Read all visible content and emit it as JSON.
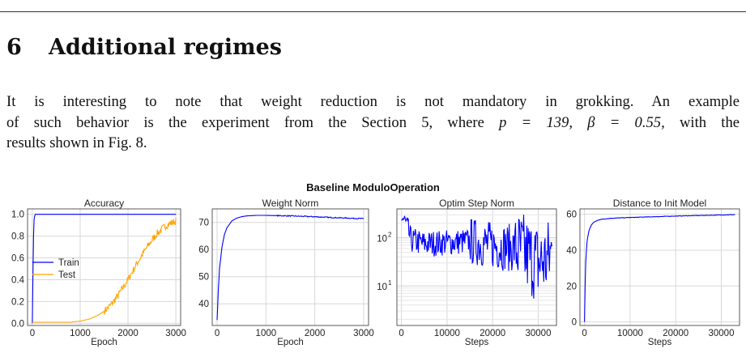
{
  "section": {
    "number": "6",
    "title": "Additional regimes"
  },
  "paragraph": {
    "line1": "It is interesting to note that weight reduction is not mandatory in grokking. An example",
    "line2_pre": "of such behavior is the experiment from the Section 5, where",
    "line2_math": "p = 139, β = 0.55,",
    "line2_post": "with the",
    "line3": "results shown in Fig. 8."
  },
  "figure": {
    "suptitle": "Baseline ModuloOperation"
  },
  "chart_data": [
    {
      "type": "line",
      "title": "Accuracy",
      "xlabel": "Epoch",
      "ylabel": "",
      "xlim": [
        -100,
        3100
      ],
      "ylim": [
        -0.02,
        1.05
      ],
      "xticks": [
        0,
        1000,
        2000,
        3000
      ],
      "yticks": [
        0.0,
        0.2,
        0.4,
        0.6,
        0.8,
        1.0
      ],
      "ytick_labels": [
        "0.0",
        "0.2",
        "0.4",
        "0.6",
        "0.8",
        "1.0"
      ],
      "grid": true,
      "legend": "center-left",
      "series": [
        {
          "name": "Train",
          "color": "#0000ff",
          "x": [
            0,
            10,
            20,
            30,
            40,
            60,
            100,
            500,
            1000,
            2000,
            3000
          ],
          "y": [
            0.0,
            0.3,
            0.7,
            0.9,
            0.97,
            1.0,
            1.0,
            1.0,
            1.0,
            1.0,
            1.0
          ]
        },
        {
          "name": "Test",
          "color": "#ffa500",
          "x": [
            0,
            200,
            400,
            600,
            800,
            1000,
            1100,
            1200,
            1300,
            1400,
            1500,
            1600,
            1700,
            1800,
            1900,
            2000,
            2100,
            2200,
            2300,
            2400,
            2500,
            2600,
            2700,
            2800,
            2900,
            3000
          ],
          "y": [
            0.01,
            0.01,
            0.01,
            0.01,
            0.01,
            0.02,
            0.03,
            0.04,
            0.06,
            0.08,
            0.11,
            0.15,
            0.2,
            0.26,
            0.33,
            0.4,
            0.48,
            0.56,
            0.63,
            0.7,
            0.76,
            0.82,
            0.86,
            0.9,
            0.92,
            0.94
          ]
        }
      ]
    },
    {
      "type": "line",
      "title": "Weight Norm",
      "xlabel": "Epoch",
      "ylabel": "",
      "xlim": [
        -100,
        3100
      ],
      "ylim": [
        32,
        75
      ],
      "xticks": [
        0,
        1000,
        2000,
        3000
      ],
      "yticks": [
        40,
        50,
        60,
        70
      ],
      "ytick_labels": [
        "40",
        "50",
        "60",
        "70"
      ],
      "grid": true,
      "series": [
        {
          "color": "#0000ff",
          "x": [
            0,
            25,
            50,
            100,
            150,
            200,
            300,
            400,
            500,
            600,
            800,
            1000,
            1500,
            2000,
            2500,
            3000
          ],
          "y": [
            34,
            45,
            53,
            61,
            65.5,
            68,
            70.5,
            71.6,
            72.1,
            72.4,
            72.6,
            72.6,
            72.4,
            72.1,
            71.7,
            71.4
          ]
        }
      ]
    },
    {
      "type": "line",
      "title": "Optim Step Norm",
      "xlabel": "Steps",
      "ylabel": "",
      "xscale": "linear",
      "yscale": "log",
      "xlim": [
        -1000,
        34000
      ],
      "ylim": [
        1.5,
        400
      ],
      "xticks": [
        0,
        10000,
        20000,
        30000
      ],
      "yticks": [
        10,
        100
      ],
      "ytick_labels": [
        "10^1",
        "10^2"
      ],
      "grid": true,
      "series": [
        {
          "color": "#0000ff",
          "x": [
            0,
            2000,
            5000,
            10000,
            15000,
            20000,
            25000,
            28000,
            30000,
            32000,
            33000
          ],
          "y": [
            280,
            90,
            75,
            80,
            85,
            70,
            60,
            40,
            30,
            35,
            50
          ]
        }
      ]
    },
    {
      "type": "line",
      "title": "Distance to Init Model",
      "xlabel": "Steps",
      "ylabel": "",
      "xlim": [
        -1000,
        34000
      ],
      "ylim": [
        -2,
        63
      ],
      "xticks": [
        0,
        10000,
        20000,
        30000
      ],
      "yticks": [
        0,
        20,
        40,
        60
      ],
      "ytick_labels": [
        "0",
        "20",
        "40",
        "60"
      ],
      "grid": true,
      "series": [
        {
          "color": "#0000ff",
          "x": [
            0,
            150,
            300,
            600,
            1000,
            1500,
            2000,
            3000,
            4000,
            6000,
            10000,
            15000,
            20000,
            25000,
            30000,
            33000
          ],
          "y": [
            0,
            22,
            36,
            46,
            51,
            54,
            55.5,
            56.8,
            57.3,
            57.8,
            58.2,
            58.6,
            59.0,
            59.3,
            59.6,
            59.8
          ]
        }
      ]
    }
  ]
}
